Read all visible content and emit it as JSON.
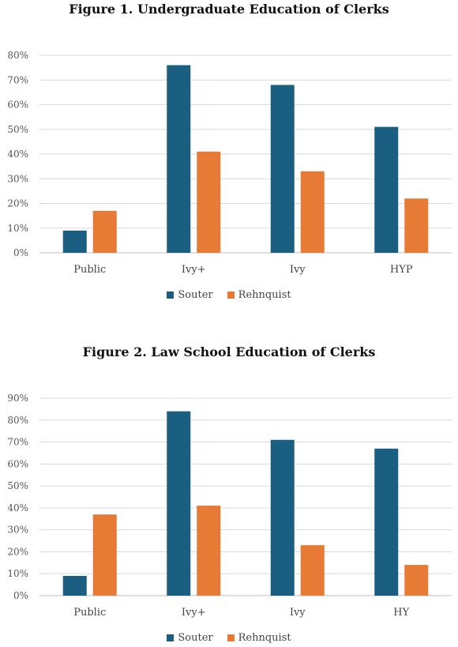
{
  "colors": {
    "souter": "#1a5f82",
    "rehnquist": "#e77a35",
    "grid": "#d9d9d9",
    "axis": "#bfbfbf"
  },
  "chart_data": [
    {
      "type": "bar",
      "title": "Figure 1. Undergraduate Education of Clerks",
      "categories": [
        "Public",
        "Ivy+",
        "Ivy",
        "HYP"
      ],
      "series": [
        {
          "name": "Souter",
          "values": [
            9,
            76,
            68,
            51
          ]
        },
        {
          "name": "Rehnquist",
          "values": [
            17,
            41,
            33,
            22
          ]
        }
      ],
      "ylim": [
        0,
        80
      ],
      "yticks": [
        "0%",
        "10%",
        "20%",
        "30%",
        "40%",
        "50%",
        "60%",
        "70%",
        "80%"
      ],
      "grid": true,
      "legend": "bottom"
    },
    {
      "type": "bar",
      "title": "Figure 2. Law School Education of Clerks",
      "categories": [
        "Public",
        "Ivy+",
        "Ivy",
        "HY"
      ],
      "series": [
        {
          "name": "Souter",
          "values": [
            9,
            84,
            71,
            67
          ]
        },
        {
          "name": "Rehnquist",
          "values": [
            37,
            41,
            23,
            14
          ]
        }
      ],
      "ylim": [
        0,
        90
      ],
      "yticks": [
        "0%",
        "10%",
        "20%",
        "30%",
        "40%",
        "50%",
        "60%",
        "70%",
        "80%",
        "90%"
      ],
      "grid": true,
      "legend": "bottom"
    }
  ]
}
